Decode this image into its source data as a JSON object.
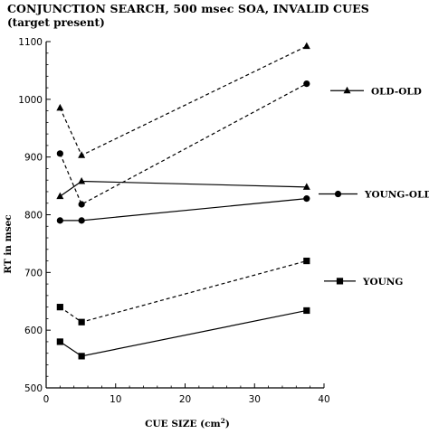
{
  "chart_data": {
    "type": "line",
    "title": "CONJUNCTION SEARCH, 500 msec SOA, INVALID CUES",
    "subtitle": "(target present)",
    "xlabel_main": "CUE SIZE (cm",
    "xlabel_sup": "2",
    "xlabel_end": ")",
    "ylabel": "RT in msec",
    "xlim": [
      0,
      40
    ],
    "ylim": [
      500,
      1100
    ],
    "x_ticks": [
      "0",
      "10",
      "20",
      "30",
      "40"
    ],
    "y_ticks": [
      "500",
      "600",
      "700",
      "800",
      "900",
      "1000",
      "1100"
    ],
    "x": [
      2.0,
      5.1,
      37.5
    ],
    "series": [
      {
        "name": "OLD-OLD",
        "marker": "triangle",
        "style": "dashed",
        "values": [
          985,
          903,
          1092
        ]
      },
      {
        "name": "OLD-OLD",
        "marker": "triangle",
        "style": "solid",
        "values": [
          832,
          858,
          848
        ]
      },
      {
        "name": "YOUNG-OLD",
        "marker": "circle",
        "style": "dashed",
        "values": [
          906,
          818,
          1027
        ]
      },
      {
        "name": "YOUNG-OLD",
        "marker": "circle",
        "style": "solid",
        "values": [
          790,
          790,
          828
        ]
      },
      {
        "name": "YOUNG",
        "marker": "square",
        "style": "dashed",
        "values": [
          640,
          614,
          720
        ]
      },
      {
        "name": "YOUNG",
        "marker": "square",
        "style": "solid",
        "values": [
          580,
          555,
          634
        ]
      }
    ],
    "legend": [
      {
        "label": "OLD-OLD",
        "marker": "triangle"
      },
      {
        "label": "YOUNG-OLD",
        "marker": "circle"
      },
      {
        "label": "YOUNG",
        "marker": "square"
      }
    ],
    "grid": false
  }
}
